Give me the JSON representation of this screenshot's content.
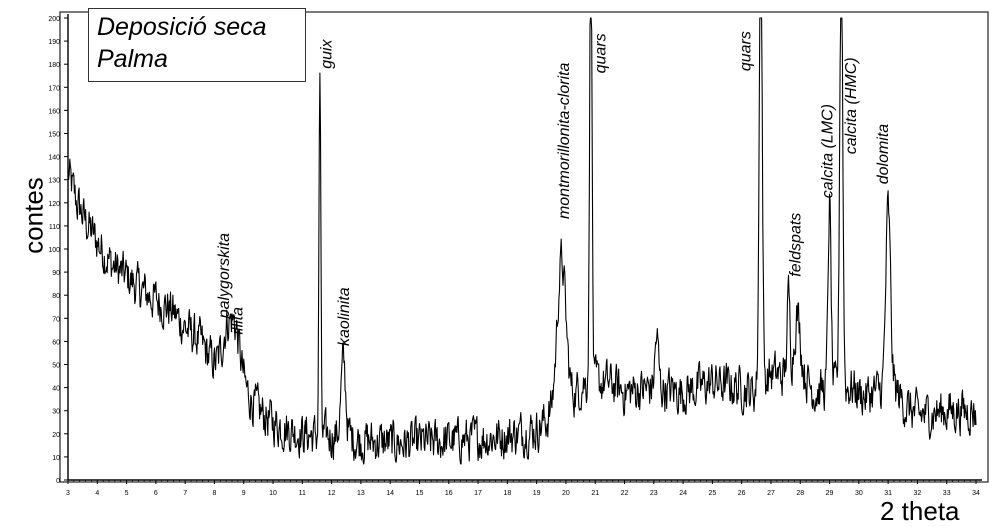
{
  "chart_data": {
    "type": "line",
    "title_lines": [
      "Deposició seca",
      "Palma"
    ],
    "xlabel": "2 theta",
    "ylabel": "contes",
    "xlim": [
      3,
      34
    ],
    "ylim": [
      0,
      200
    ],
    "x_ticks": [
      3,
      4,
      5,
      6,
      7,
      8,
      9,
      10,
      11,
      12,
      13,
      14,
      15,
      16,
      17,
      18,
      19,
      20,
      21,
      22,
      23,
      24,
      25,
      26,
      27,
      28,
      29,
      30,
      31,
      32,
      33,
      34
    ],
    "y_ticks": [
      0,
      10,
      20,
      30,
      40,
      50,
      60,
      70,
      80,
      90,
      100,
      110,
      120,
      130,
      140,
      150,
      160,
      170,
      180,
      190,
      200
    ],
    "baseline_profile": [
      [
        3.0,
        133
      ],
      [
        3.3,
        120
      ],
      [
        3.6,
        112
      ],
      [
        4.0,
        103
      ],
      [
        4.5,
        93
      ],
      [
        5.0,
        88
      ],
      [
        5.5,
        82
      ],
      [
        6.0,
        78
      ],
      [
        6.5,
        74
      ],
      [
        7.0,
        66
      ],
      [
        7.5,
        60
      ],
      [
        8.0,
        50
      ],
      [
        8.3,
        45
      ],
      [
        9.0,
        40
      ],
      [
        9.5,
        30
      ],
      [
        10.0,
        25
      ],
      [
        10.5,
        22
      ],
      [
        11.0,
        20
      ],
      [
        11.5,
        19
      ],
      [
        12.0,
        19
      ],
      [
        12.5,
        19
      ],
      [
        13.0,
        17
      ],
      [
        14.0,
        16
      ],
      [
        15.0,
        16
      ],
      [
        16.0,
        17
      ],
      [
        17.0,
        18
      ],
      [
        18.0,
        19
      ],
      [
        19.0,
        22
      ],
      [
        19.5,
        28
      ],
      [
        20.0,
        32
      ],
      [
        20.6,
        42
      ],
      [
        21.0,
        42
      ],
      [
        21.5,
        42
      ],
      [
        22.0,
        38
      ],
      [
        23.0,
        40
      ],
      [
        24.0,
        38
      ],
      [
        25.0,
        42
      ],
      [
        26.0,
        40
      ],
      [
        26.4,
        38
      ],
      [
        27.0,
        46
      ],
      [
        27.4,
        45
      ],
      [
        28.0,
        48
      ],
      [
        28.5,
        38
      ],
      [
        29.0,
        40
      ],
      [
        29.8,
        40
      ],
      [
        30.2,
        36
      ],
      [
        30.5,
        38
      ],
      [
        31.2,
        40
      ],
      [
        31.6,
        32
      ],
      [
        32.0,
        28
      ],
      [
        33.0,
        30
      ],
      [
        34.0,
        30
      ]
    ],
    "peaks": [
      {
        "center": 8.45,
        "height": 22,
        "width": 0.18
      },
      {
        "center": 8.75,
        "height": 18,
        "width": 0.15
      },
      {
        "center": 11.6,
        "height": 158,
        "width": 0.03
      },
      {
        "center": 12.4,
        "height": 32,
        "width": 0.08
      },
      {
        "center": 19.85,
        "height": 64,
        "width": 0.15
      },
      {
        "center": 20.85,
        "height": 200,
        "width": 0.04
      },
      {
        "center": 23.1,
        "height": 22,
        "width": 0.06
      },
      {
        "center": 26.65,
        "height": 200,
        "width": 0.05
      },
      {
        "center": 27.6,
        "height": 34,
        "width": 0.05
      },
      {
        "center": 27.9,
        "height": 24,
        "width": 0.1
      },
      {
        "center": 29.0,
        "height": 80,
        "width": 0.05
      },
      {
        "center": 29.4,
        "height": 200,
        "width": 0.05
      },
      {
        "center": 31.0,
        "height": 78,
        "width": 0.08
      }
    ],
    "noise_amplitude": 8,
    "annotations": [
      {
        "text": "palygorskita",
        "x": 8.5,
        "y": 70
      },
      {
        "text": "illita",
        "x": 8.95,
        "y": 63
      },
      {
        "text": "guix",
        "x": 12.0,
        "y": 178
      },
      {
        "text": "kaolinita",
        "x": 12.6,
        "y": 58
      },
      {
        "text": "montmorillonita-clorita",
        "x": 20.1,
        "y": 113
      },
      {
        "text": "quars",
        "x": 21.35,
        "y": 176
      },
      {
        "text": "quars",
        "x": 26.3,
        "y": 177
      },
      {
        "text": "feldspats",
        "x": 28.0,
        "y": 88
      },
      {
        "text": "calcita (LMC)",
        "x": 29.1,
        "y": 122
      },
      {
        "text": "calcita (HMC)",
        "x": 29.9,
        "y": 141
      },
      {
        "text": "dolomita",
        "x": 31.0,
        "y": 128
      }
    ]
  }
}
